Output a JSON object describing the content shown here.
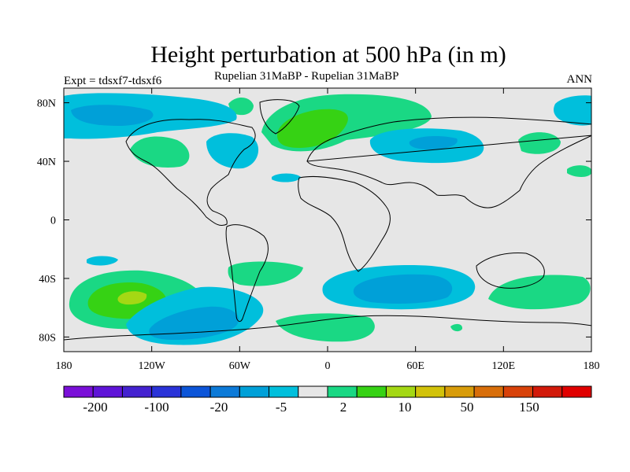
{
  "header": {
    "title": "Height perturbation at 500 hPa (in m)",
    "experiment": "Expt = tdsxf7-tdsxf6",
    "subtitle": "Rupelian  31MaBP - Rupelian  31MaBP",
    "season": "ANN"
  },
  "chart_data": {
    "type": "filled-contour-map",
    "title": "Height perturbation at 500 hPa (in m)",
    "subtitle": "Rupelian  31MaBP - Rupelian  31MaBP",
    "projection": "cylindrical equidistant",
    "xlim": [
      -180,
      180
    ],
    "ylim": [
      -90,
      90
    ],
    "x_ticks": [
      {
        "value": -180,
        "label": "180"
      },
      {
        "value": -120,
        "label": "120W"
      },
      {
        "value": -60,
        "label": "60W"
      },
      {
        "value": 0,
        "label": "0"
      },
      {
        "value": 60,
        "label": "60E"
      },
      {
        "value": 120,
        "label": "120E"
      },
      {
        "value": 180,
        "label": "180"
      }
    ],
    "y_ticks": [
      {
        "value": 80,
        "label": "80N"
      },
      {
        "value": 40,
        "label": "40N"
      },
      {
        "value": 0,
        "label": "0"
      },
      {
        "value": -40,
        "label": "40S"
      },
      {
        "value": -80,
        "label": "80S"
      }
    ],
    "colorbar": {
      "colors": [
        "#7a10d8",
        "#5f14d8",
        "#4422d0",
        "#2a33d8",
        "#0c55d8",
        "#0c7ad8",
        "#00a0d8",
        "#00bfdc",
        "#e6e6e6",
        "#1ad884",
        "#36d214",
        "#a4d814",
        "#d2c20a",
        "#d89c0a",
        "#d86e0a",
        "#d8420a",
        "#d21a0a",
        "#e00000"
      ],
      "tick_labels": [
        "-200",
        "-100",
        "-20",
        "-5",
        "2",
        "10",
        "50",
        "150"
      ]
    },
    "features": [
      {
        "sign": "positive",
        "level": "2-10",
        "region": "Southern Pacific",
        "lon": -130,
        "lat": -55
      },
      {
        "sign": "positive",
        "level": "10-50",
        "region": "Southern Pacific",
        "lon": -130,
        "lat": -55
      },
      {
        "sign": "positive",
        "level": "50-150",
        "region": "Southern Pacific",
        "lon": -133,
        "lat": -52
      },
      {
        "sign": "positive",
        "level": "2-10",
        "region": "Northern Europe / Scandinavia",
        "lon": 15,
        "lat": 65
      },
      {
        "sign": "positive",
        "level": "10-50",
        "region": "Scandinavia",
        "lon": 12,
        "lat": 62
      },
      {
        "sign": "negative",
        "level": "-5 to -2",
        "region": "Southern Indian Ocean",
        "lon": 45,
        "lat": -45
      },
      {
        "sign": "negative",
        "level": "-20 to -5",
        "region": "Southern Indian Ocean",
        "lon": 45,
        "lat": -45
      },
      {
        "sign": "negative",
        "level": "-20 to -5",
        "region": "South Pacific / Drake Passage",
        "lon": -80,
        "lat": -65
      },
      {
        "sign": "negative",
        "level": "-5 to -2",
        "region": "Siberia",
        "lon": 80,
        "lat": 53
      },
      {
        "sign": "negative",
        "level": "-20 to -5",
        "region": "North Pacific / Alaska",
        "lon": -155,
        "lat": 75
      }
    ]
  }
}
